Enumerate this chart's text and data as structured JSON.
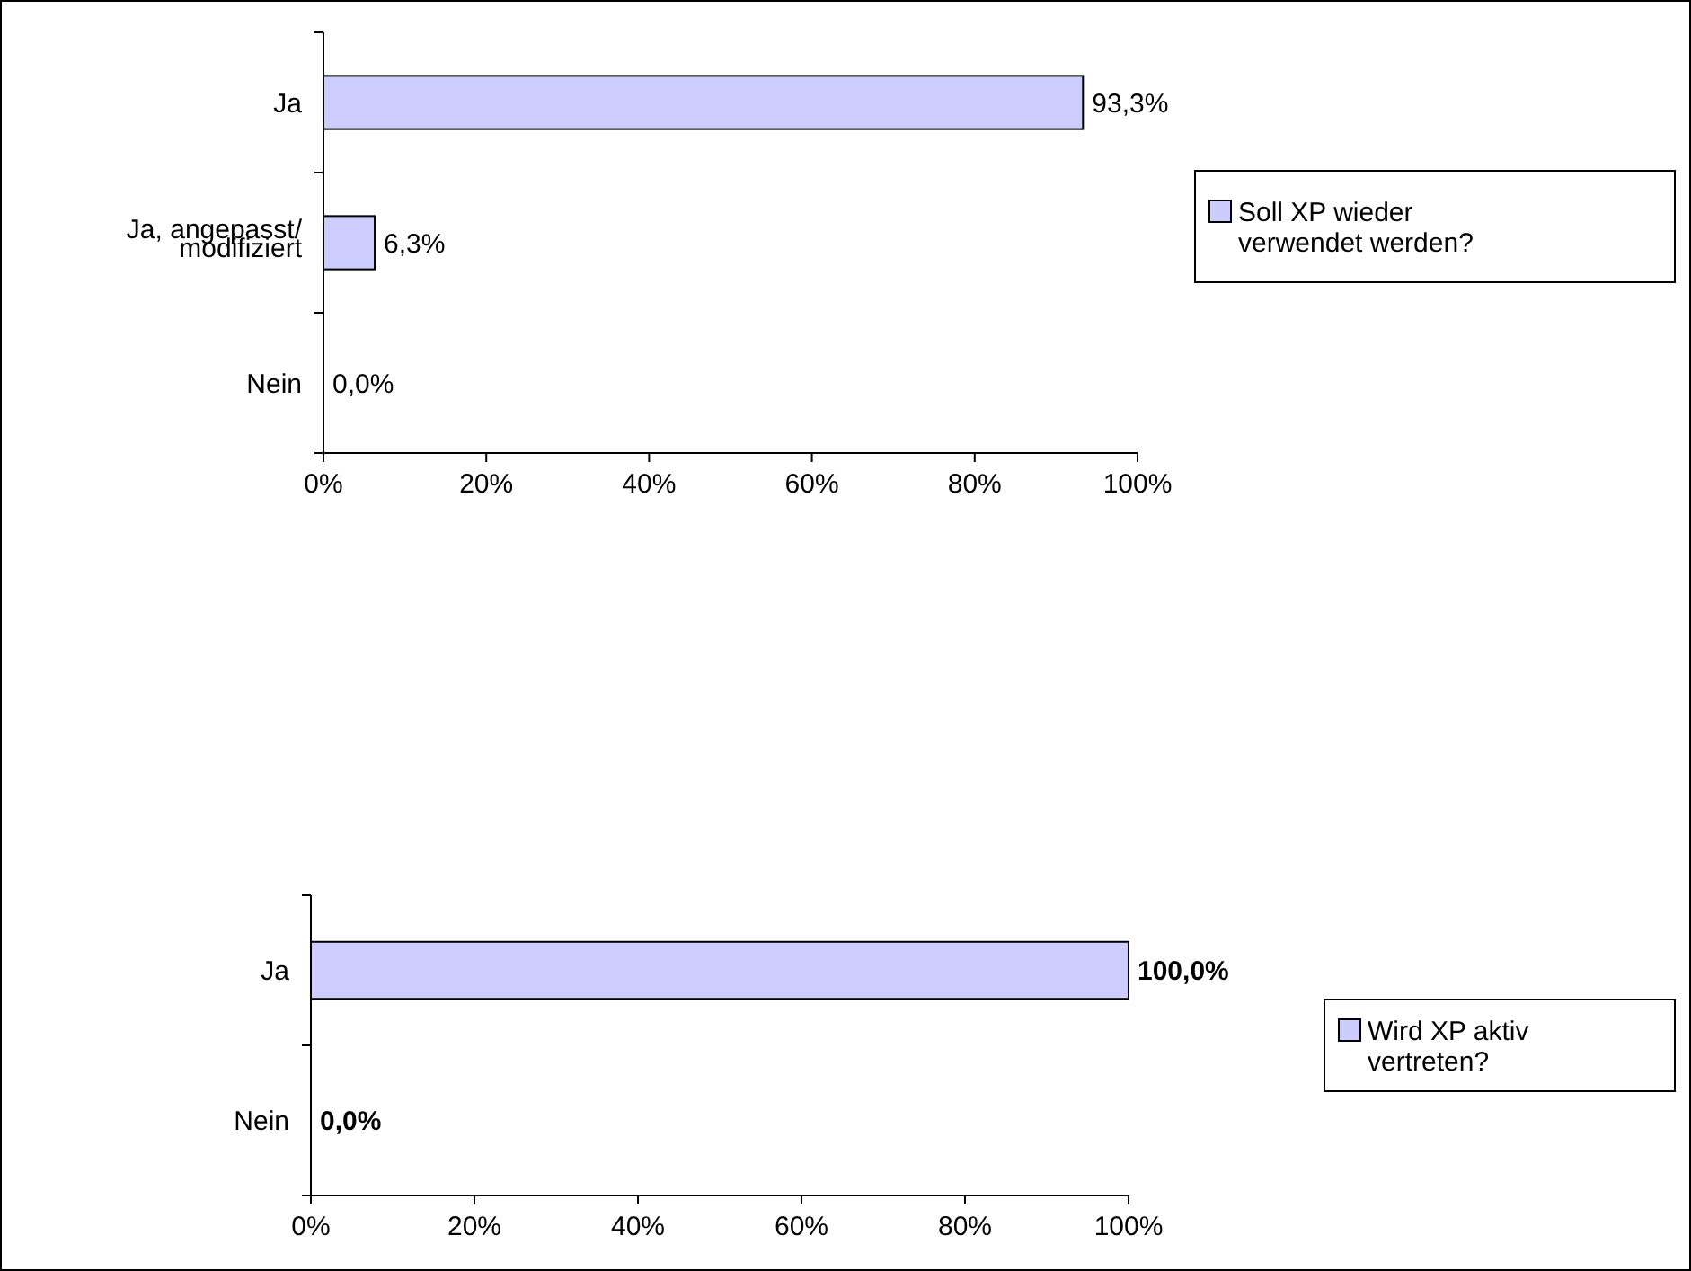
{
  "chart_data": [
    {
      "type": "bar",
      "orientation": "horizontal",
      "categories": [
        "Ja",
        "Ja, angepasst/modifiziert",
        "Nein"
      ],
      "series": [
        {
          "name": "Soll XP wieder verwendet werden?",
          "color": "#ccccff",
          "values": [
            93.3,
            6.3,
            0
          ],
          "value_labels": [
            "93,3%",
            "6,3%",
            "0,0%"
          ]
        }
      ],
      "xlim": [
        0,
        100
      ],
      "xticks": [
        {
          "value": 0,
          "label": "0%"
        },
        {
          "value": 20,
          "label": "20%"
        },
        {
          "value": 40,
          "label": "40%"
        },
        {
          "value": 60,
          "label": "60%"
        },
        {
          "value": 80,
          "label": "80%"
        },
        {
          "value": 100,
          "label": "100%"
        }
      ],
      "grid": false,
      "legend": "right"
    },
    {
      "type": "bar",
      "orientation": "horizontal",
      "categories": [
        "Ja",
        "Nein"
      ],
      "series": [
        {
          "name": "Wird XP aktiv vertreten?",
          "color": "#ccccff",
          "values": [
            100,
            0
          ],
          "value_labels": [
            "100,0%",
            "0,0%"
          ]
        }
      ],
      "xlim": [
        0,
        100
      ],
      "xticks": [
        {
          "value": 0,
          "label": "0%"
        },
        {
          "value": 20,
          "label": "20%"
        },
        {
          "value": 40,
          "label": "40%"
        },
        {
          "value": 60,
          "label": "60%"
        },
        {
          "value": 80,
          "label": "80%"
        },
        {
          "value": 100,
          "label": "100%"
        }
      ],
      "grid": false,
      "legend": "right"
    }
  ]
}
